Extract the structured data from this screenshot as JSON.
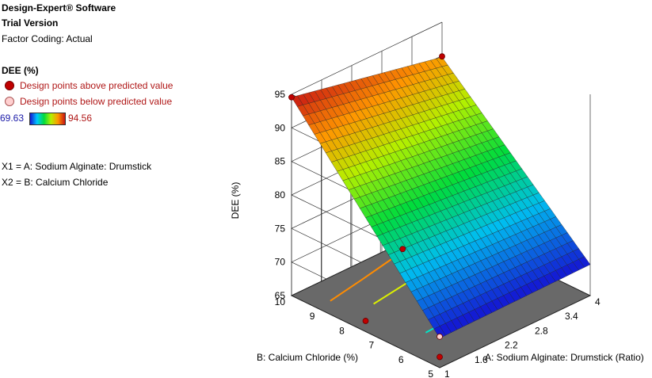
{
  "header": {
    "software": "Design-Expert® Software",
    "version": "Trial Version",
    "coding": "Factor Coding: Actual"
  },
  "legend": {
    "response": "DEE (%)",
    "above": "Design points above predicted value",
    "below": "Design points below predicted value",
    "min_label": "69.63",
    "max_label": "94.56",
    "colors": {
      "above": "#c00000",
      "below": "#ffd0d0",
      "scale_low": "#1414d2",
      "scale_high": "#c81414"
    }
  },
  "factors": {
    "x1": "X1 = A: Sodium Alginate: Drumstick",
    "x2": "X2 = B: Calcium Chloride"
  },
  "chart_data": {
    "type": "surface",
    "zlabel": "DEE (%)",
    "xlabel": "A: Sodium Alginate: Drumstick (Ratio)",
    "ylabel": "B: Calcium Chloride (%)",
    "x_ticks": [
      "1",
      "1.6",
      "2.2",
      "2.8",
      "3.4",
      "4"
    ],
    "y_ticks": [
      "5",
      "6",
      "7",
      "8",
      "9",
      "10"
    ],
    "z_ticks": [
      "65",
      "70",
      "75",
      "80",
      "85",
      "90",
      "95"
    ],
    "x_range": [
      1,
      4
    ],
    "y_range": [
      5,
      10
    ],
    "z_range": [
      65,
      95
    ],
    "surface_corners": {
      "x1_y10": 94.56,
      "x4_y10": 89.8,
      "x1_y5": 69.4,
      "x4_y5": 69.63
    },
    "design_points": [
      {
        "x": 1,
        "y": 10,
        "z": 94.56,
        "type": "above"
      },
      {
        "x": 4,
        "y": 10,
        "z": 89.9,
        "type": "above"
      },
      {
        "x": 1,
        "y": 5,
        "z": 66.6,
        "type": "above"
      },
      {
        "x": 1,
        "y": 7.5,
        "z": 66.6,
        "type": "above"
      },
      {
        "x": 1,
        "y": 6.25,
        "z": 80.0,
        "type": "above"
      },
      {
        "x": 1,
        "y": 5,
        "z": 69.63,
        "type": "below"
      }
    ],
    "contours": [
      {
        "color": "#ff8c00"
      },
      {
        "color": "#dcf000"
      },
      {
        "color": "#14dc14"
      },
      {
        "color": "#00e6c8"
      },
      {
        "color": "#1e8cff"
      }
    ]
  }
}
